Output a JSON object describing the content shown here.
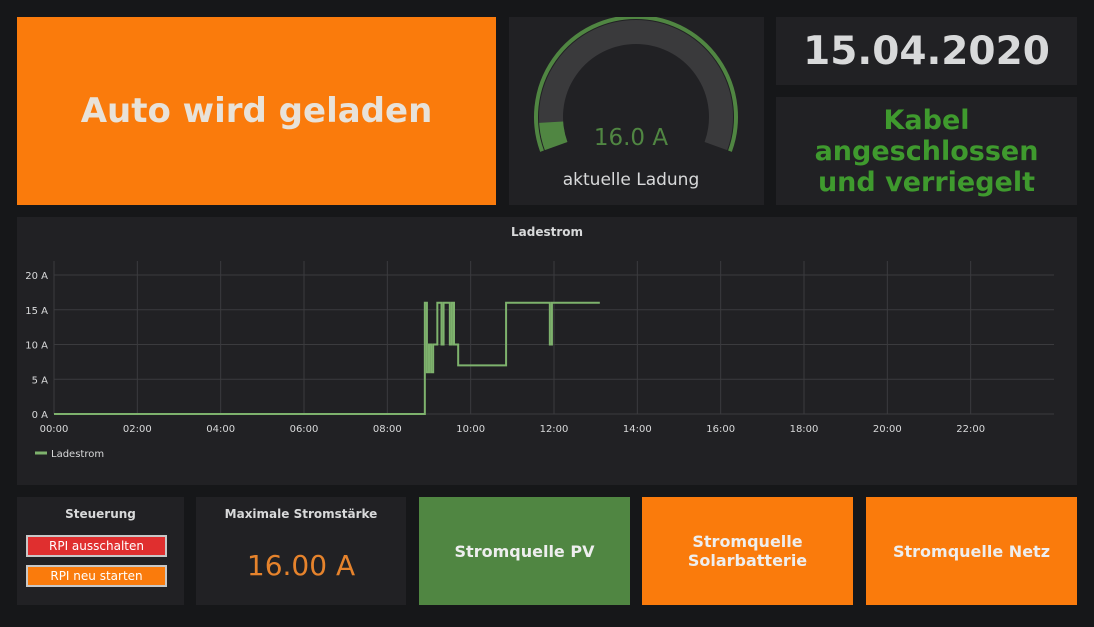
{
  "status": {
    "text": "Auto wird geladen"
  },
  "gauge": {
    "value": 16.0,
    "max": 32,
    "value_text": "16.0 A",
    "label": "aktuelle Ladung",
    "track_color": "#508642",
    "fill_color": "#508642"
  },
  "date": {
    "text": "15.04.2020"
  },
  "cable": {
    "line1": "Kabel",
    "line2": "angeschlossen",
    "line3": "und verriegelt"
  },
  "chart": {
    "title": "Ladestrom",
    "legend_label": "Ladestrom"
  },
  "chart_data": {
    "type": "line",
    "title": "Ladestrom",
    "xlabel": "",
    "ylabel": "",
    "xlim": [
      0,
      24
    ],
    "ylim": [
      0,
      20
    ],
    "x_ticks": [
      "00:00",
      "02:00",
      "04:00",
      "06:00",
      "08:00",
      "10:00",
      "12:00",
      "14:00",
      "16:00",
      "18:00",
      "20:00",
      "22:00"
    ],
    "y_ticks": [
      "0 A",
      "5 A",
      "10 A",
      "15 A",
      "20 A"
    ],
    "grid": true,
    "legend": "bottom-left",
    "series": [
      {
        "name": "Ladestrom",
        "color": "#7eb26d",
        "x": [
          0,
          8.9,
          8.9,
          8.95,
          8.95,
          9.0,
          9.0,
          9.05,
          9.05,
          9.1,
          9.1,
          9.2,
          9.2,
          9.3,
          9.3,
          9.35,
          9.35,
          9.5,
          9.5,
          9.55,
          9.55,
          9.6,
          9.6,
          9.7,
          9.7,
          9.75,
          9.75,
          10.85,
          10.85,
          11.9,
          11.9,
          11.95,
          11.95,
          13.1
        ],
        "y": [
          0,
          0,
          16,
          16,
          6,
          6,
          10,
          10,
          6,
          6,
          10,
          10,
          16,
          16,
          10,
          10,
          16,
          16,
          10,
          10,
          16,
          16,
          10,
          10,
          7,
          7,
          7,
          7,
          16,
          16,
          10,
          10,
          16,
          16
        ]
      }
    ]
  },
  "steuerung": {
    "title": "Steuerung",
    "off_label": "RPI ausschalten",
    "restart_label": "RPI neu starten"
  },
  "maxstrom": {
    "title": "Maximale Stromstärke",
    "value": "16.00 A"
  },
  "sources": {
    "pv": {
      "line1": "Stromquelle PV"
    },
    "solar": {
      "line1": "Stromquelle",
      "line2": "Solarbatterie"
    },
    "netz": {
      "line1": "Stromquelle Netz"
    }
  }
}
